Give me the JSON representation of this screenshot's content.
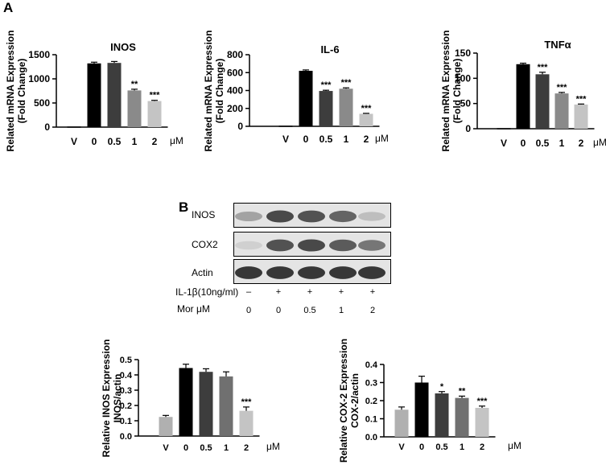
{
  "panels": {
    "a": "A",
    "b": "B"
  },
  "chart_data": [
    {
      "type": "bar",
      "id": "inos-mrna",
      "title": "INOS",
      "ylabel": [
        "Related mRNA Expression",
        "(Fold Change)"
      ],
      "categories": [
        "V",
        "0",
        "0.5",
        "1",
        "2"
      ],
      "unit": "μM",
      "values": [
        0,
        1320,
        1330,
        760,
        540
      ],
      "errors": [
        0,
        25,
        30,
        25,
        15
      ],
      "significance": [
        "",
        "",
        "",
        "**",
        "***"
      ],
      "colors": [
        "#000000",
        "#000000",
        "#3d3d3d",
        "#8a8a8a",
        "#c4c4c4"
      ],
      "ylim": [
        0,
        1500
      ],
      "yticks": [
        0,
        500,
        1000,
        1500
      ]
    },
    {
      "type": "bar",
      "id": "il6-mrna",
      "title": "IL-6",
      "ylabel": [
        "Related mRNA Expression",
        "(Fold Change)"
      ],
      "categories": [
        "V",
        "0",
        "0.5",
        "1",
        "2"
      ],
      "unit": "μM",
      "values": [
        0,
        620,
        395,
        420,
        140
      ],
      "errors": [
        0,
        10,
        8,
        10,
        5
      ],
      "significance": [
        "",
        "",
        "***",
        "***",
        "***"
      ],
      "colors": [
        "#000000",
        "#000000",
        "#3d3d3d",
        "#8a8a8a",
        "#c4c4c4"
      ],
      "ylim": [
        0,
        800
      ],
      "yticks": [
        0,
        200,
        400,
        600,
        800
      ]
    },
    {
      "type": "bar",
      "id": "tnfa-mrna",
      "title": "TNFα",
      "ylabel": [
        "Related mRNA Expression",
        "(Fold Change)"
      ],
      "categories": [
        "V",
        "0",
        "0.5",
        "1",
        "2"
      ],
      "unit": "μM",
      "values": [
        0,
        128,
        108,
        70,
        48
      ],
      "errors": [
        0,
        2,
        4,
        2,
        1
      ],
      "significance": [
        "",
        "",
        "***",
        "***",
        "***"
      ],
      "colors": [
        "#000000",
        "#000000",
        "#3d3d3d",
        "#8a8a8a",
        "#c4c4c4"
      ],
      "ylim": [
        0,
        150
      ],
      "yticks": [
        0,
        50,
        100,
        150
      ]
    },
    {
      "type": "bar",
      "id": "inos-protein",
      "title": "",
      "ylabel": [
        "Relative INOS Expression",
        "INOS/actin"
      ],
      "categories": [
        "V",
        "0",
        "0.5",
        "1",
        "2"
      ],
      "unit": "μM",
      "values": [
        0.125,
        0.445,
        0.42,
        0.39,
        0.165
      ],
      "errors": [
        0.01,
        0.025,
        0.02,
        0.03,
        0.025
      ],
      "significance": [
        "",
        "",
        "",
        "",
        "***"
      ],
      "colors": [
        "#b0b0b0",
        "#000000",
        "#3d3d3d",
        "#707070",
        "#c4c4c4"
      ],
      "ylim": [
        0,
        0.5
      ],
      "yticks": [
        0.0,
        0.1,
        0.2,
        0.3,
        0.4,
        0.5
      ]
    },
    {
      "type": "bar",
      "id": "cox2-protein",
      "title": "",
      "ylabel": [
        "Relative COX-2 Expression",
        "COX-2/actin"
      ],
      "categories": [
        "V",
        "0",
        "0.5",
        "1",
        "2"
      ],
      "unit": "μM",
      "values": [
        0.15,
        0.3,
        0.24,
        0.215,
        0.16
      ],
      "errors": [
        0.015,
        0.035,
        0.01,
        0.01,
        0.01
      ],
      "significance": [
        "",
        "",
        "*",
        "**",
        "***"
      ],
      "colors": [
        "#b0b0b0",
        "#000000",
        "#3d3d3d",
        "#707070",
        "#c4c4c4"
      ],
      "ylim": [
        0,
        0.4
      ],
      "yticks": [
        0.0,
        0.1,
        0.2,
        0.3,
        0.4
      ]
    }
  ],
  "blot": {
    "rows": [
      {
        "label": "INOS",
        "intensities": [
          0.35,
          0.85,
          0.8,
          0.7,
          0.2
        ]
      },
      {
        "label": "COX2",
        "intensities": [
          0.1,
          0.8,
          0.85,
          0.75,
          0.6
        ]
      },
      {
        "label": "Actin",
        "intensities": [
          0.95,
          0.95,
          0.95,
          0.95,
          0.95
        ]
      }
    ],
    "il1b_label": "IL-1β(10ng/ml)",
    "il1b": [
      "–",
      "+",
      "+",
      "+",
      "+"
    ],
    "mor_label": "Mor μM",
    "mor": [
      "0",
      "0",
      "0.5",
      "1",
      "2"
    ]
  }
}
